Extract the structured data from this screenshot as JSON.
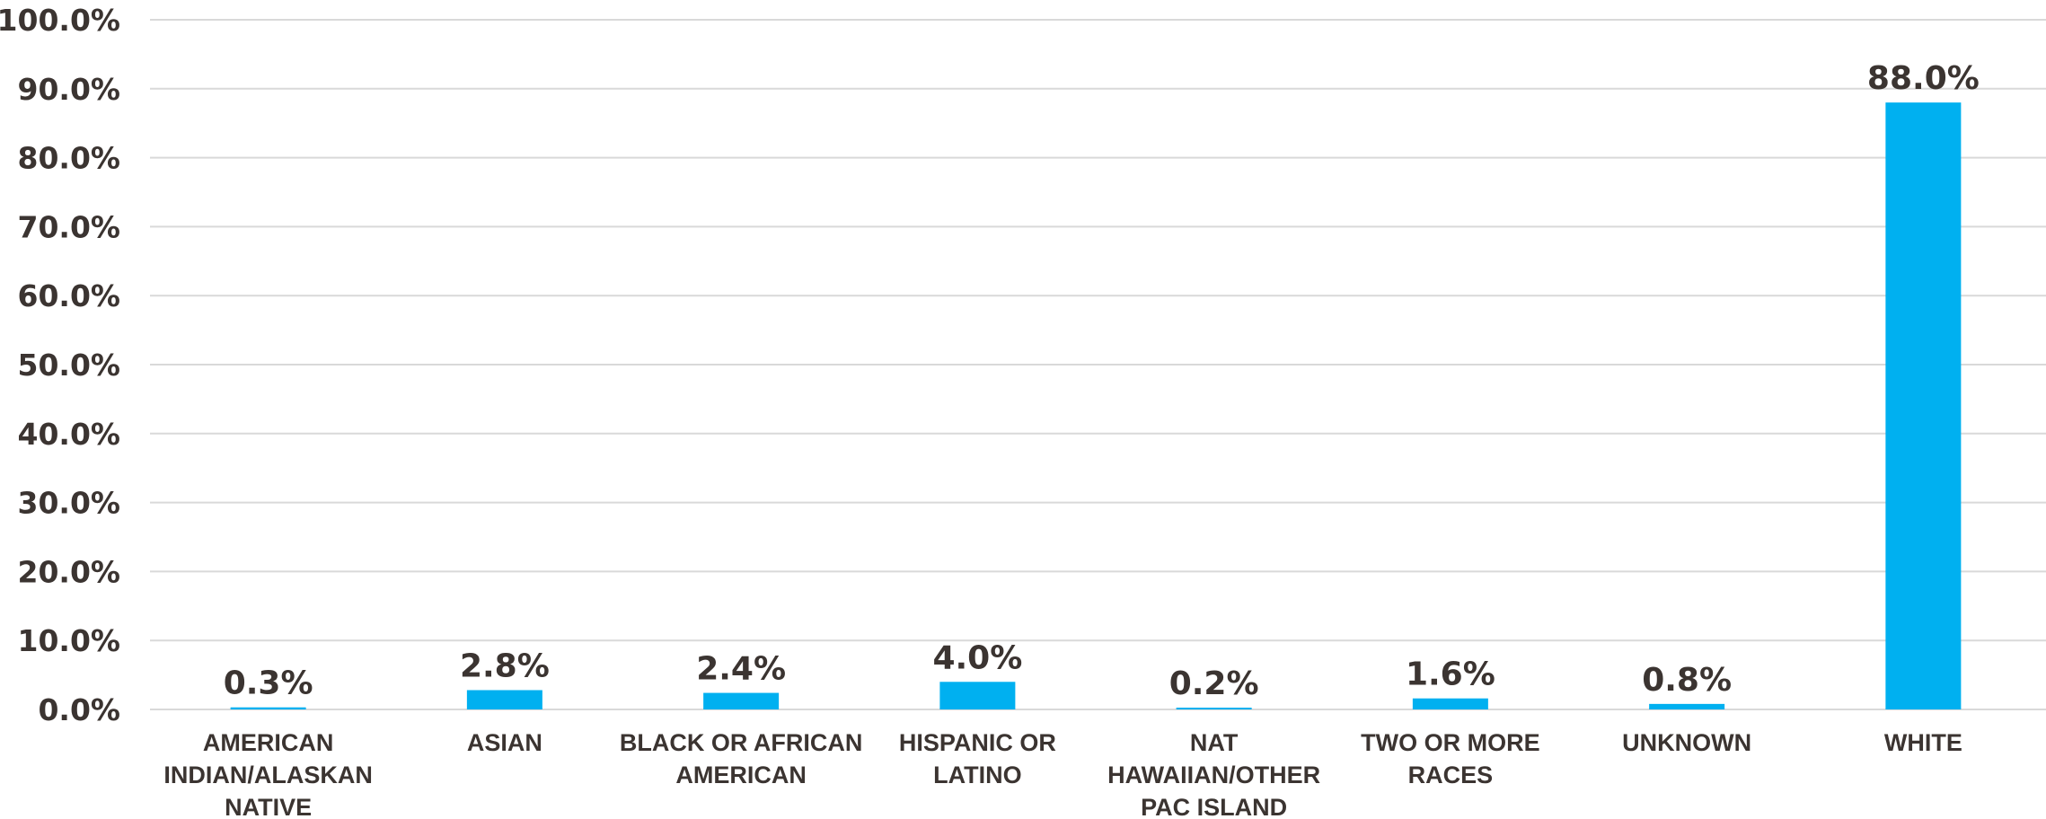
{
  "chart_data": {
    "type": "bar",
    "title": "",
    "xlabel": "",
    "ylabel": "",
    "categories": [
      [
        "AMERICAN",
        "INDIAN/ALASKAN",
        "NATIVE"
      ],
      [
        "ASIAN"
      ],
      [
        "BLACK OR AFRICAN",
        "AMERICAN"
      ],
      [
        "HISPANIC OR",
        "LATINO"
      ],
      [
        "NAT",
        "HAWAIIAN/OTHER",
        "PAC ISLAND"
      ],
      [
        "TWO OR MORE",
        "RACES"
      ],
      [
        "UNKNOWN"
      ],
      [
        "WHITE"
      ]
    ],
    "values": [
      0.3,
      2.8,
      2.4,
      4.0,
      0.2,
      1.6,
      0.8,
      88.0
    ],
    "value_labels": [
      "0.3%",
      "2.8%",
      "2.4%",
      "4.0%",
      "0.2%",
      "1.6%",
      "0.8%",
      "88.0%"
    ],
    "y_ticks": [
      0,
      10,
      20,
      30,
      40,
      50,
      60,
      70,
      80,
      90,
      100
    ],
    "y_tick_labels": [
      "0.0%",
      "10.0%",
      "20.0%",
      "30.0%",
      "40.0%",
      "50.0%",
      "60.0%",
      "70.0%",
      "80.0%",
      "90.0%",
      "100.0%"
    ],
    "ylim": [
      0,
      100
    ],
    "grid": true,
    "legend": "none",
    "bar_color": "#00b0f0",
    "text_color": "#3b3431",
    "grid_color": "#d9d9d9"
  }
}
